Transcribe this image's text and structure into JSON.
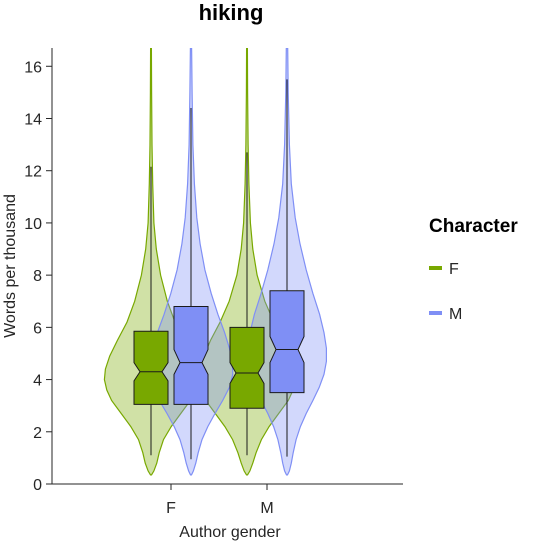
{
  "chart_data": {
    "type": "violin",
    "title": "hiking",
    "xlabel": "Author gender",
    "ylabel": "Words per thousand",
    "categories": [
      "F",
      "M"
    ],
    "ylim": [
      0,
      16.7
    ],
    "yticks": [
      0,
      2,
      4,
      6,
      8,
      10,
      12,
      14,
      16
    ],
    "legend": {
      "title": "Character",
      "position": "right"
    },
    "grid": false,
    "series": [
      {
        "name": "F",
        "color": "#78A800",
        "stats": [
          {
            "category": "F",
            "q1": 3.05,
            "median": 4.3,
            "q3": 5.85,
            "notch_low": 3.95,
            "notch_high": 4.65,
            "whisker_low": 1.1,
            "whisker_high": 12.15,
            "min": 0.35,
            "max": 16.7
          },
          {
            "category": "M",
            "q1": 2.9,
            "median": 4.25,
            "q3": 6.0,
            "notch_low": 3.85,
            "notch_high": 4.65,
            "whisker_low": 1.1,
            "whisker_high": 12.7,
            "min": 0.35,
            "max": 16.7
          }
        ],
        "density": [
          {
            "category": "F",
            "profile": [
              [
                0.35,
                0.01
              ],
              [
                0.5,
                0.06
              ],
              [
                0.8,
                0.12
              ],
              [
                1.2,
                0.17
              ],
              [
                1.7,
                0.26
              ],
              [
                2.2,
                0.42
              ],
              [
                2.7,
                0.62
              ],
              [
                3.2,
                0.82
              ],
              [
                3.6,
                0.92
              ],
              [
                4.0,
                0.97
              ],
              [
                4.4,
                0.95
              ],
              [
                4.9,
                0.86
              ],
              [
                5.5,
                0.7
              ],
              [
                6.2,
                0.5
              ],
              [
                7.0,
                0.34
              ],
              [
                8.0,
                0.2
              ],
              [
                9.0,
                0.11
              ],
              [
                10.0,
                0.06
              ],
              [
                11.5,
                0.035
              ],
              [
                13.0,
                0.02
              ],
              [
                15.0,
                0.012
              ],
              [
                16.7,
                0.008
              ]
            ]
          },
          {
            "category": "M",
            "profile": [
              [
                0.35,
                0.01
              ],
              [
                0.5,
                0.06
              ],
              [
                0.8,
                0.12
              ],
              [
                1.2,
                0.19
              ],
              [
                1.7,
                0.3
              ],
              [
                2.2,
                0.46
              ],
              [
                2.7,
                0.66
              ],
              [
                3.2,
                0.86
              ],
              [
                3.6,
                0.96
              ],
              [
                4.0,
                1.0
              ],
              [
                4.4,
                0.98
              ],
              [
                4.9,
                0.9
              ],
              [
                5.5,
                0.76
              ],
              [
                6.2,
                0.56
              ],
              [
                7.0,
                0.37
              ],
              [
                8.0,
                0.21
              ],
              [
                9.0,
                0.12
              ],
              [
                10.0,
                0.07
              ],
              [
                11.5,
                0.04
              ],
              [
                13.0,
                0.022
              ],
              [
                15.0,
                0.012
              ],
              [
                16.7,
                0.008
              ]
            ]
          }
        ]
      },
      {
        "name": "M",
        "color": "#7F8FF5",
        "stats": [
          {
            "category": "F",
            "q1": 3.05,
            "median": 4.65,
            "q3": 6.8,
            "notch_low": 4.2,
            "notch_high": 5.15,
            "whisker_low": 0.95,
            "whisker_high": 14.4,
            "min": 0.35,
            "max": 16.7
          },
          {
            "category": "M",
            "q1": 3.5,
            "median": 5.15,
            "q3": 7.4,
            "notch_low": 4.65,
            "notch_high": 5.65,
            "whisker_low": 1.05,
            "whisker_high": 15.5,
            "min": 0.35,
            "max": 16.7
          }
        ],
        "density": [
          {
            "category": "F",
            "profile": [
              [
                0.35,
                0.01
              ],
              [
                0.5,
                0.05
              ],
              [
                0.8,
                0.1
              ],
              [
                1.2,
                0.15
              ],
              [
                1.7,
                0.23
              ],
              [
                2.2,
                0.35
              ],
              [
                2.7,
                0.5
              ],
              [
                3.2,
                0.66
              ],
              [
                3.7,
                0.8
              ],
              [
                4.2,
                0.87
              ],
              [
                4.7,
                0.86
              ],
              [
                5.2,
                0.8
              ],
              [
                5.8,
                0.7
              ],
              [
                6.5,
                0.56
              ],
              [
                7.3,
                0.42
              ],
              [
                8.2,
                0.29
              ],
              [
                9.2,
                0.19
              ],
              [
                10.2,
                0.12
              ],
              [
                11.5,
                0.07
              ],
              [
                13.0,
                0.04
              ],
              [
                15.0,
                0.022
              ],
              [
                16.7,
                0.012
              ]
            ]
          },
          {
            "category": "M",
            "profile": [
              [
                0.35,
                0.01
              ],
              [
                0.5,
                0.05
              ],
              [
                0.8,
                0.09
              ],
              [
                1.2,
                0.13
              ],
              [
                1.7,
                0.19
              ],
              [
                2.2,
                0.28
              ],
              [
                2.7,
                0.4
              ],
              [
                3.2,
                0.54
              ],
              [
                3.7,
                0.67
              ],
              [
                4.2,
                0.77
              ],
              [
                4.7,
                0.82
              ],
              [
                5.2,
                0.82
              ],
              [
                5.8,
                0.77
              ],
              [
                6.5,
                0.68
              ],
              [
                7.3,
                0.54
              ],
              [
                8.2,
                0.4
              ],
              [
                9.2,
                0.27
              ],
              [
                10.2,
                0.17
              ],
              [
                11.5,
                0.09
              ],
              [
                13.0,
                0.05
              ],
              [
                15.0,
                0.026
              ],
              [
                16.7,
                0.014
              ]
            ]
          }
        ]
      }
    ]
  }
}
